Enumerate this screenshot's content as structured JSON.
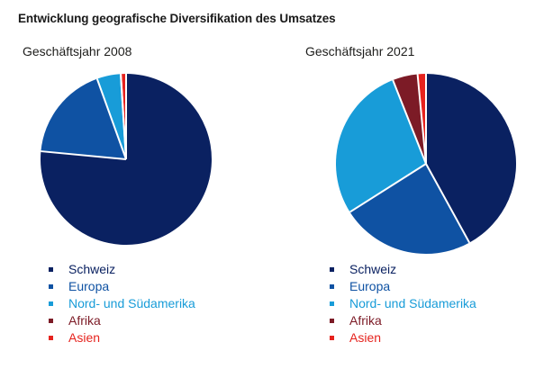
{
  "page": {
    "title": "Entwicklung geografische Diversifikation des Umsatzes"
  },
  "chart_data": [
    {
      "type": "pie",
      "title": "Geschäftsjahr 2008",
      "labels": [
        "Schweiz",
        "Europa",
        "Nord- und Südamerika",
        "Afrika",
        "Asien"
      ],
      "slice_ids": [
        "schweiz",
        "europa",
        "nord-und-suedamerika",
        "afrika",
        "asien"
      ],
      "values_percent": [
        76.5,
        18,
        4.5,
        0,
        1
      ],
      "colors": [
        "#0a2161",
        "#0f52a3",
        "#189cd8",
        "#7c1b26",
        "#e6231e"
      ],
      "start": "12-oclock",
      "direction": "clockwise",
      "separator_color": "#ffffff",
      "legend_position": "bottom"
    },
    {
      "type": "pie",
      "title": "Geschäftsjahr 2021",
      "labels": [
        "Schweiz",
        "Europa",
        "Nord- und Südamerika",
        "Afrika",
        "Asien"
      ],
      "slice_ids": [
        "schweiz",
        "europa",
        "nord-und-suedamerika",
        "afrika",
        "asien"
      ],
      "values_percent": [
        42,
        24,
        28,
        4.5,
        1.5
      ],
      "colors": [
        "#0a2161",
        "#0f52a3",
        "#189cd8",
        "#7c1b26",
        "#e6231e"
      ],
      "start": "12-oclock",
      "direction": "clockwise",
      "separator_color": "#ffffff",
      "legend_position": "bottom"
    }
  ]
}
